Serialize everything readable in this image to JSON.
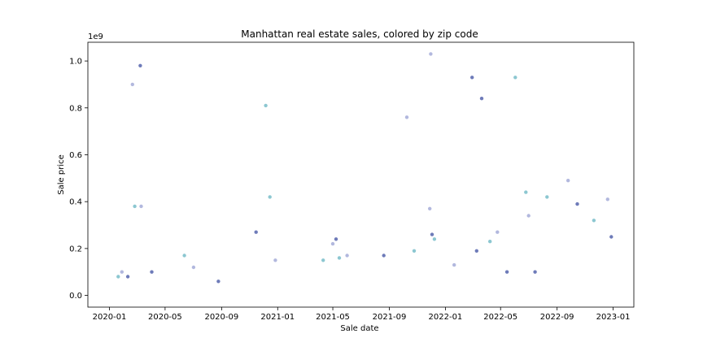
{
  "chart_data": {
    "type": "scatter",
    "title": "Manhattan real estate sales, colored by zip code",
    "xlabel": "Sale date",
    "ylabel": "Sale price",
    "y_offset_label": "1e9",
    "x_ticks": [
      "2020-01",
      "2020-05",
      "2020-09",
      "2021-01",
      "2021-05",
      "2021-09",
      "2022-01",
      "2022-05",
      "2022-09",
      "2023-01"
    ],
    "y_ticks": [
      0.0,
      0.2,
      0.4,
      0.6,
      0.8,
      1.0
    ],
    "xlim": [
      "2019-11-15",
      "2023-02-15"
    ],
    "ylim": [
      -0.05,
      1.08
    ],
    "grid": false,
    "legend": "none",
    "colors": [
      "#9fa6d6",
      "#7b7fc4",
      "#5b5ea6",
      "#4a5aa8",
      "#4b6fb5",
      "#3f7fb8",
      "#6fb9c6",
      "#a8d9d2",
      "#b7b7dd"
    ],
    "series": [
      {
        "x": [
          "2020-02-20",
          "2020-03-08",
          "2020-12-06",
          "2021-11-30",
          "2022-03-21",
          "2022-06-02",
          "2021-10-09",
          "2022-02-28",
          "2020-01-20",
          "2020-01-28",
          "2020-02-10",
          "2020-02-25",
          "2020-03-10",
          "2020-04-02",
          "2020-06-12",
          "2020-07-02",
          "2020-08-25",
          "2020-12-15",
          "2020-12-27",
          "2020-11-15",
          "2021-04-10",
          "2021-05-01",
          "2021-05-08",
          "2021-05-15",
          "2021-06-01",
          "2021-08-20",
          "2021-10-25",
          "2021-11-28",
          "2021-12-03",
          "2021-12-08",
          "2022-01-20",
          "2022-03-10",
          "2022-04-08",
          "2022-04-24",
          "2022-05-15",
          "2022-06-25",
          "2022-07-01",
          "2022-07-15",
          "2022-08-10",
          "2022-09-25",
          "2022-10-15",
          "2022-11-20",
          "2022-12-20",
          "2022-12-28"
        ],
        "y": [
          0.9,
          0.98,
          0.81,
          1.03,
          0.84,
          0.93,
          0.76,
          0.93,
          0.08,
          0.1,
          0.08,
          0.38,
          0.38,
          0.1,
          0.17,
          0.12,
          0.06,
          0.42,
          0.15,
          0.27,
          0.15,
          0.22,
          0.24,
          0.16,
          0.17,
          0.17,
          0.19,
          0.37,
          0.26,
          0.24,
          0.13,
          0.19,
          0.23,
          0.27,
          0.1,
          0.44,
          0.34,
          0.1,
          0.42,
          0.49,
          0.39,
          0.32,
          0.41,
          0.25
        ]
      }
    ]
  }
}
